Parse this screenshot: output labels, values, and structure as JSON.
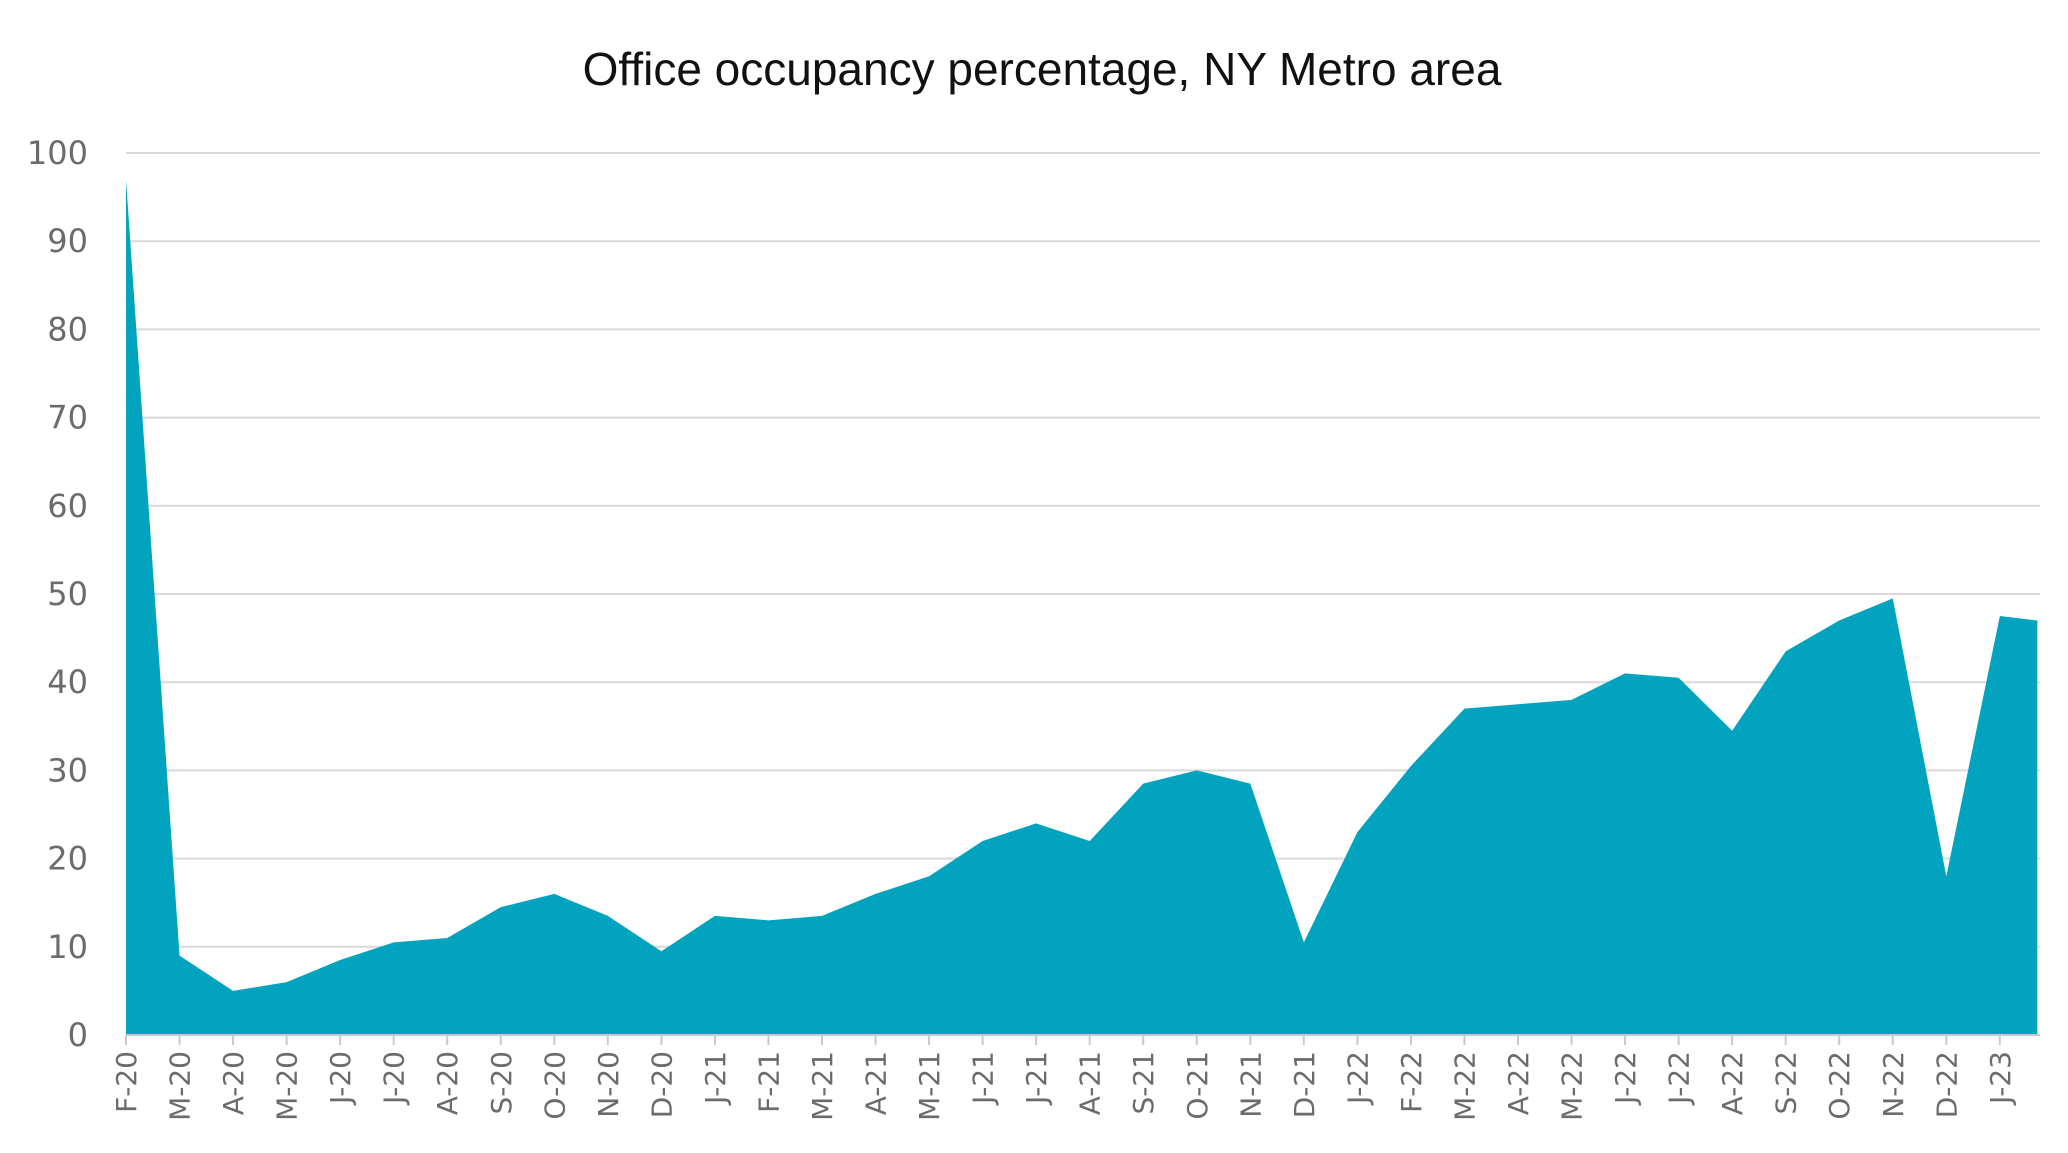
{
  "chart_data": {
    "type": "area",
    "title": "Office occupancy percentage, NY Metro area",
    "xlabel": "",
    "ylabel": "",
    "ylim": [
      0,
      100
    ],
    "yticks": [
      0,
      10,
      20,
      30,
      40,
      50,
      60,
      70,
      80,
      90,
      100
    ],
    "grid": true,
    "legend": "none",
    "color": "#02a3bf",
    "categories": [
      "F-20",
      "M-20",
      "A-20",
      "M-20",
      "J-20",
      "J-20",
      "A-20",
      "S-20",
      "O-20",
      "N-20",
      "D-20",
      "J-21",
      "F-21",
      "M-21",
      "A-21",
      "M-21",
      "J-21",
      "J-21",
      "A-21",
      "S-21",
      "O-21",
      "N-21",
      "D-21",
      "J-22",
      "F-22",
      "M-22",
      "A-22",
      "M-22",
      "J-22",
      "J-22",
      "A-22",
      "S-22",
      "O-22",
      "N-22",
      "D-22",
      "J-23"
    ],
    "x": [
      0,
      1,
      2,
      3,
      4,
      5,
      6,
      7,
      8,
      9,
      10,
      11,
      12,
      13,
      14,
      15,
      16,
      17,
      18,
      19,
      20,
      21,
      22,
      23,
      24,
      25,
      26,
      27,
      28,
      29,
      30,
      31,
      32,
      33,
      34,
      35,
      35.7
    ],
    "values": [
      97,
      9,
      5,
      6,
      8.5,
      10.5,
      11,
      14.5,
      16,
      13.5,
      9.5,
      13.5,
      13,
      13.5,
      16,
      18,
      22,
      24,
      22,
      28.5,
      30,
      28.5,
      10.5,
      23,
      30.5,
      37,
      37.5,
      38,
      41,
      40.5,
      34.5,
      43.5,
      47,
      49.5,
      18,
      47.5,
      47
    ]
  }
}
